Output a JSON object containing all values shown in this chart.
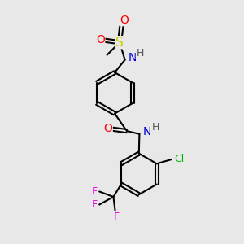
{
  "bg_color": "#e8e8e8",
  "bond_color": "#000000",
  "atom_colors": {
    "O": "#ff0000",
    "N": "#0000cc",
    "S": "#cccc00",
    "Cl": "#00bb00",
    "F": "#ee00ee",
    "H": "#555555",
    "C": "#000000"
  },
  "font_size": 9,
  "line_width": 1.5
}
